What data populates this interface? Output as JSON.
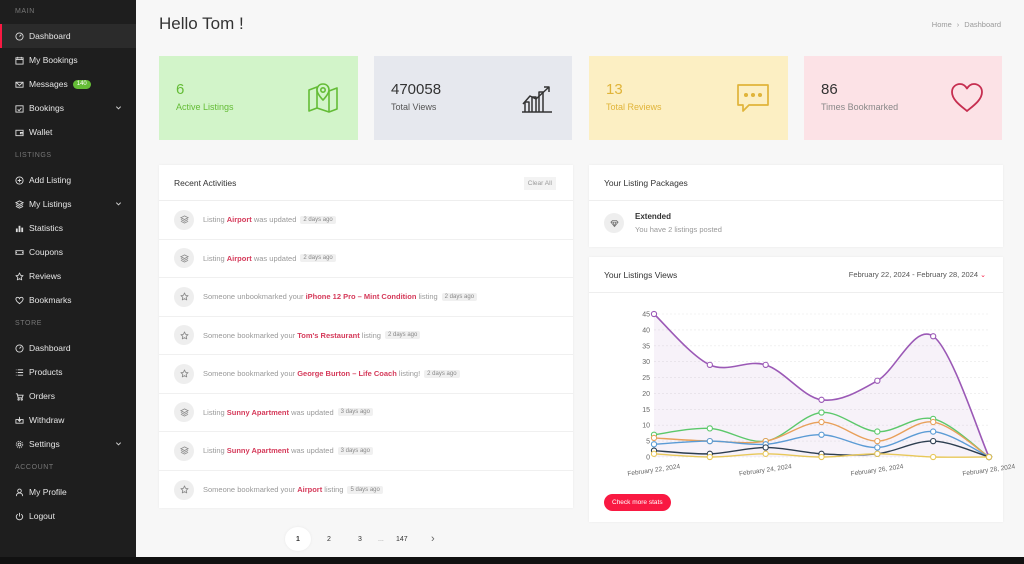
{
  "sidebar": {
    "sections": {
      "main": "MAIN",
      "listings": "LISTINGS",
      "store": "STORE",
      "account": "ACCOUNT"
    },
    "main_items": [
      {
        "label": "Dashboard",
        "icon": "gauge-icon"
      },
      {
        "label": "My Bookings",
        "icon": "calendar-icon"
      },
      {
        "label": "Messages",
        "icon": "envelope-icon",
        "badge": "140"
      },
      {
        "label": "Bookings",
        "icon": "calendar-check-icon"
      },
      {
        "label": "Wallet",
        "icon": "wallet-icon"
      }
    ],
    "listing_items": [
      {
        "label": "Add Listing",
        "icon": "plus-circle-icon"
      },
      {
        "label": "My Listings",
        "icon": "layers-icon"
      },
      {
        "label": "Statistics",
        "icon": "bar-chart-icon"
      },
      {
        "label": "Coupons",
        "icon": "ticket-icon"
      },
      {
        "label": "Reviews",
        "icon": "star-icon"
      },
      {
        "label": "Bookmarks",
        "icon": "heart-icon"
      }
    ],
    "store_items": [
      {
        "label": "Dashboard",
        "icon": "gauge-icon"
      },
      {
        "label": "Products",
        "icon": "list-icon"
      },
      {
        "label": "Orders",
        "icon": "cart-icon"
      },
      {
        "label": "Withdraw",
        "icon": "withdraw-icon"
      },
      {
        "label": "Settings",
        "icon": "gear-icon"
      }
    ],
    "account_items": [
      {
        "label": "My Profile",
        "icon": "user-icon"
      },
      {
        "label": "Logout",
        "icon": "power-icon"
      }
    ]
  },
  "header": {
    "greeting": "Hello Tom !",
    "breadcrumb": [
      "Home",
      "Dashboard"
    ]
  },
  "stats": [
    {
      "value": "6",
      "label": "Active Listings",
      "icon": "map-pin-icon"
    },
    {
      "value": "470058",
      "label": "Total Views",
      "icon": "growth-chart-icon"
    },
    {
      "value": "13",
      "label": "Total Reviews",
      "icon": "chat-bubble-icon"
    },
    {
      "value": "86",
      "label": "Times Bookmarked",
      "icon": "heart-icon"
    }
  ],
  "activities": {
    "title": "Recent Activities",
    "clear_label": "Clear All",
    "items": [
      {
        "icon": "layers-icon",
        "pre": "Listing ",
        "link": "Airport",
        "post": " was updated",
        "time": "2 days ago"
      },
      {
        "icon": "layers-icon",
        "pre": "Listing ",
        "link": "Airport",
        "post": " was updated",
        "time": "2 days ago"
      },
      {
        "icon": "star-icon",
        "pre": "Someone unbookmarked your ",
        "link": "iPhone 12 Pro – Mint Condition",
        "post": " listing",
        "time": "2 days ago"
      },
      {
        "icon": "star-icon",
        "pre": "Someone bookmarked your ",
        "link": "Tom's Restaurant",
        "post": " listing",
        "time": "2 days ago"
      },
      {
        "icon": "star-icon",
        "pre": "Someone bookmarked your ",
        "link": "George Burton – Life Coach",
        "post": " listing!",
        "time": "2 days ago"
      },
      {
        "icon": "layers-icon",
        "pre": "Listing ",
        "link": "Sunny Apartment",
        "post": " was updated",
        "time": "3 days ago"
      },
      {
        "icon": "layers-icon",
        "pre": "Listing ",
        "link": "Sunny Apartment",
        "post": " was updated",
        "time": "3 days ago"
      },
      {
        "icon": "star-icon",
        "pre": "Someone bookmarked your ",
        "link": "Airport",
        "post": " listing",
        "time": "5 days ago"
      }
    ]
  },
  "packages": {
    "title": "Your Listing Packages",
    "name": "Extended",
    "desc": "You have 2 listings posted"
  },
  "views": {
    "title": "Your Listings Views",
    "date_range": "February 22, 2024 - February 28, 2024",
    "button": "Check more stats"
  },
  "pagination": {
    "pages": [
      "1",
      "2",
      "3",
      "147"
    ],
    "ellipsis": "...",
    "current": "1"
  },
  "chart_data": {
    "type": "line",
    "x": [
      "February 22, 2024",
      "February 23, 2024",
      "February 24, 2024",
      "February 25, 2024",
      "February 26, 2024",
      "February 27, 2024",
      "February 28, 2024"
    ],
    "x_tick_labels": [
      "February 22, 2024",
      "February 24, 2024",
      "February 26, 2024",
      "February 28, 2024"
    ],
    "y_ticks": [
      0,
      5,
      10,
      15,
      20,
      25,
      30,
      35,
      40,
      45
    ],
    "ylim": [
      0,
      45
    ],
    "grid": true,
    "series": [
      {
        "color": "#9b59b6",
        "values": [
          45,
          29,
          29,
          18,
          24,
          38,
          0
        ],
        "fill": true
      },
      {
        "color": "#5cc86b",
        "values": [
          7,
          9,
          5,
          14,
          8,
          12,
          0
        ]
      },
      {
        "color": "#e8a05a",
        "values": [
          6,
          5,
          5,
          11,
          5,
          11,
          0
        ]
      },
      {
        "color": "#5b9bd5",
        "values": [
          4,
          5,
          4,
          7,
          3,
          8,
          0
        ]
      },
      {
        "color": "#2d3e50",
        "values": [
          2,
          1,
          3,
          1,
          1,
          5,
          0
        ]
      },
      {
        "color": "#e8c85a",
        "values": [
          1,
          0,
          1,
          0,
          1,
          0,
          0
        ]
      }
    ]
  }
}
